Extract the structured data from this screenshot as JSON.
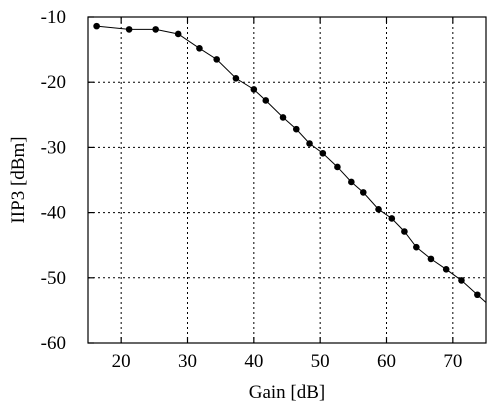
{
  "chart_data": {
    "type": "line",
    "xlabel": "Gain [dB]",
    "ylabel": "IIP3 [dBm]",
    "xlim": [
      15,
      75
    ],
    "ylim": [
      -60,
      -10
    ],
    "xticks": [
      20,
      30,
      40,
      50,
      60,
      70
    ],
    "yticks": [
      -10,
      -20,
      -30,
      -40,
      -50,
      -60
    ],
    "grid": true,
    "grid_style": "dotted",
    "marker": "filled-circle",
    "line_color": "#000000",
    "series": [
      {
        "x": [
          16.3,
          21.2,
          25.2,
          28.6,
          31.8,
          34.4,
          37.3,
          40.0,
          41.8,
          44.4,
          46.4,
          48.4,
          50.4,
          52.6,
          54.7,
          56.5,
          58.8,
          60.8,
          62.7,
          64.5,
          66.7,
          69.0,
          71.3,
          73.7
        ],
        "y": [
          -11.4,
          -11.9,
          -11.9,
          -12.6,
          -14.8,
          -16.5,
          -19.4,
          -21.1,
          -22.8,
          -25.4,
          -27.2,
          -29.4,
          -30.9,
          -33.0,
          -35.3,
          -36.9,
          -39.5,
          -40.9,
          -42.9,
          -45.3,
          -47.1,
          -48.7,
          -50.4,
          -52.6
        ]
      }
    ]
  }
}
